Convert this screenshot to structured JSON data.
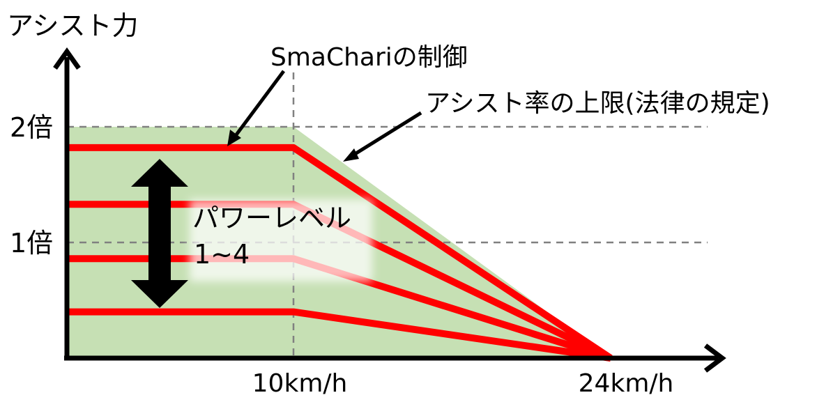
{
  "axes": {
    "y_title": "アシスト力",
    "y_ticks": [
      {
        "label": "2倍",
        "value": 2
      },
      {
        "label": "1倍",
        "value": 1
      }
    ],
    "x_ticks": [
      {
        "label": "10km/h",
        "value": 10
      },
      {
        "label": "24km/h",
        "value": 24
      }
    ]
  },
  "annotations": {
    "control_label": "SmaChariの制御",
    "limit_label": "アシスト率の上限(法律の規定)",
    "power_level_line1": "パワーレベル",
    "power_level_line2": "1~4"
  },
  "colors": {
    "limit_area_fill": "#c6e0b4",
    "level_lines": "#ff0000",
    "axis": "#000000",
    "dashed_guides": "#808080"
  },
  "chart_data": {
    "type": "line",
    "x_range": [
      0,
      24
    ],
    "y_range": [
      0,
      2
    ],
    "limit_area": {
      "x": [
        0,
        10,
        24
      ],
      "y": [
        2,
        2,
        0
      ]
    },
    "series": [
      {
        "x": [
          0,
          10,
          24
        ],
        "y": [
          1.82,
          1.82,
          0
        ]
      },
      {
        "x": [
          0,
          10,
          24
        ],
        "y": [
          1.33,
          1.33,
          0
        ]
      },
      {
        "x": [
          0,
          10,
          24
        ],
        "y": [
          0.86,
          0.86,
          0
        ]
      },
      {
        "x": [
          0,
          10,
          24
        ],
        "y": [
          0.4,
          0.4,
          0
        ]
      }
    ]
  }
}
